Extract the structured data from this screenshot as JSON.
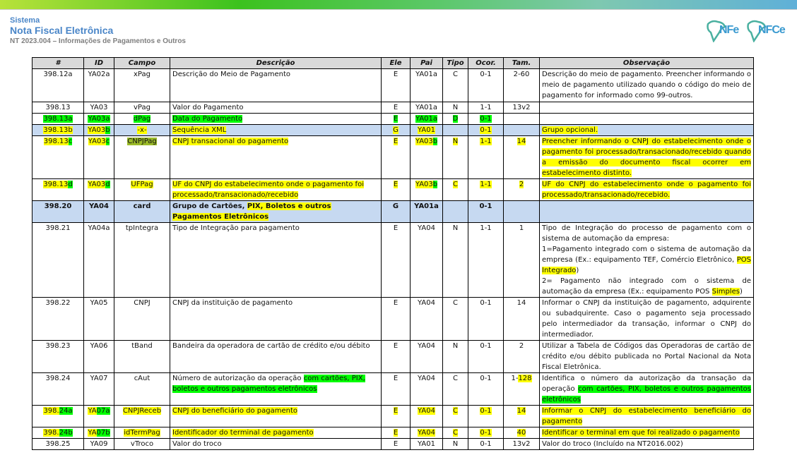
{
  "header": {
    "system_label": "Sistema",
    "title": "Nota Fiscal Eletrônica",
    "subtitle": "NT 2023.004 – Informações de Pagamentos e Outros",
    "logos": [
      "NFe",
      "NFCe"
    ]
  },
  "colors": {
    "yellow_highlight": "#ffff00",
    "green_highlight": "#00ff00",
    "group_row": "#c6d9f1",
    "header_row": "#d9d9d9",
    "title": "#4a86c8"
  },
  "table": {
    "columns": [
      "#",
      "ID",
      "Campo",
      "Descrição",
      "Ele",
      "Pai",
      "Tipo",
      "Ocor.",
      "Tam.",
      "Observação"
    ],
    "rows": [
      {
        "cells": [
          "398.12a",
          "YA02a",
          "xPag",
          "Descrição do Meio de Pagamento",
          "E",
          "YA01a",
          "C",
          "0-1",
          "2-60",
          "Descrição do meio de pagamento. Preencher informando o meio de pagamento utilizado quando o código do meio de pagamento for informado como 99-outros."
        ],
        "h": 46
      },
      {
        "cells": [
          "398.13",
          "YA03",
          "vPag",
          "Valor do Pagamento",
          "E",
          "YA01a",
          "N",
          "1-1",
          "13v2",
          ""
        ],
        "h": 13
      },
      {
        "cells": [
          [
            [
              "398.13a",
              "g"
            ]
          ],
          [
            [
              "YA03a",
              "g"
            ]
          ],
          [
            [
              "dPag",
              "g"
            ]
          ],
          [
            [
              "Data do Pagamento",
              "g"
            ]
          ],
          [
            [
              "E",
              "g"
            ]
          ],
          [
            [
              "YA01a",
              "g"
            ]
          ],
          [
            [
              "D",
              "g"
            ]
          ],
          [
            [
              "0-1",
              "g"
            ]
          ],
          "",
          ""
        ],
        "h": 15
      },
      {
        "style": "blue",
        "cells": [
          [
            [
              "398.13b",
              "y"
            ]
          ],
          [
            [
              "YA03",
              "y"
            ],
            [
              "b",
              "g"
            ]
          ],
          [
            [
              "-x-",
              "y"
            ]
          ],
          [
            [
              "Sequência XML",
              "y"
            ]
          ],
          [
            [
              "G",
              "y"
            ]
          ],
          [
            [
              "YA01",
              "y"
            ]
          ],
          "",
          [
            [
              "0-1",
              "y"
            ]
          ],
          "",
          [
            [
              "Grupo opcional.",
              "y"
            ]
          ]
        ],
        "h": 15
      },
      {
        "cells": [
          [
            [
              "398.13",
              "y"
            ],
            [
              "c",
              "g"
            ]
          ],
          [
            [
              "YA03",
              "y"
            ],
            [
              "c",
              "g"
            ]
          ],
          [
            [
              "CNPJPag",
              "o"
            ]
          ],
          [
            [
              "CNPJ transacional do pagamento",
              "y"
            ]
          ],
          [
            [
              "E",
              "y"
            ]
          ],
          [
            [
              "YA03",
              "y"
            ],
            [
              "b",
              "g"
            ]
          ],
          [
            [
              "N",
              "y"
            ]
          ],
          [
            [
              "1-1",
              "y"
            ]
          ],
          [
            [
              "14",
              "y"
            ]
          ],
          [
            [
              "Preencher informando o CNPJ do estabelecimento onde o pagamento foi processado/transacionado/recebido quando a emissão do documento fiscal ocorrer em estabelecimento distinto.",
              "y"
            ]
          ]
        ],
        "h": 60
      },
      {
        "cells": [
          [
            [
              "398.13",
              "y"
            ],
            [
              "d",
              "g"
            ]
          ],
          [
            [
              "YA03",
              "y"
            ],
            [
              "d",
              "g"
            ]
          ],
          [
            [
              "UFPag",
              "y"
            ]
          ],
          [
            [
              "UF do CNPJ do estabelecimento onde o pagamento foi processado/transacionado/recebido",
              "y"
            ]
          ],
          [
            [
              "E",
              "y"
            ]
          ],
          [
            [
              "YA03",
              "y"
            ],
            [
              "b",
              "g"
            ]
          ],
          [
            [
              "C",
              "y"
            ]
          ],
          [
            [
              "1-1",
              "y"
            ]
          ],
          [
            [
              "2",
              "y"
            ]
          ],
          [
            [
              "UF do CNPJ do estabelecimento onde o pagamento foi processado/transacionado/recebido.",
              "y"
            ]
          ]
        ],
        "h": 30
      },
      {
        "style": "blue bold",
        "cells": [
          "398.20",
          "YA04",
          "card",
          [
            [
              "Grupo de Cartões, ",
              ""
            ],
            [
              "PIX, Boletos e outros Pagamentos Eletrônicos",
              "y"
            ]
          ],
          "G",
          "YA01a",
          "",
          "0-1",
          "",
          ""
        ],
        "h": 30
      },
      {
        "cells": [
          "398.21",
          "YA04a",
          "tpIntegra",
          "Tipo de Integração para pagamento",
          "E",
          "YA04",
          "N",
          "1-1",
          "1",
          [
            [
              "Tipo de Integração do processo de pagamento com o sistema de automação da empresa:\n1=Pagamento integrado com o sistema de automação da empresa (Ex.: equipamento TEF, Comércio Eletrônico, ",
              ""
            ],
            [
              "POS Integrado",
              "y"
            ],
            [
              ")\n2= Pagamento não integrado com o sistema de automação da empresa (Ex.: equipamento POS ",
              ""
            ],
            [
              "Simples",
              "y"
            ],
            [
              ")",
              ""
            ]
          ]
        ],
        "h": 100
      },
      {
        "cells": [
          "398.22",
          "YA05",
          "CNPJ",
          "CNPJ da instituição de pagamento",
          "E",
          "YA04",
          "C",
          "0-1",
          "14",
          "Informar o CNPJ da instituição de pagamento, adquirente ou subadquirente. Caso o pagamento seja processado pelo intermediador da transação, informar o CNPJ do intermediador."
        ],
        "h": 59
      },
      {
        "cells": [
          "398.23",
          "YA06",
          "tBand",
          "Bandeira da operadora de cartão de crédito e/ou débito",
          "E",
          "YA04",
          "N",
          "0-1",
          "2",
          "Utilizar a Tabela de Códigos das Operadoras de cartão de crédito e/ou débito publicada no Portal Nacional da Nota Fiscal Eletrônica."
        ],
        "h": 44
      },
      {
        "cells": [
          "398.24",
          "YA07",
          "cAut",
          [
            [
              "Número de autorização da operação ",
              ""
            ],
            [
              "com cartões, PIX, boletos e outros pagamentos eletrônicos",
              "g"
            ]
          ],
          "E",
          "YA04",
          "C",
          "0-1",
          [
            [
              "1-",
              ""
            ],
            [
              "128",
              "y"
            ]
          ],
          [
            [
              "Identifica o número da autorização da transação da operação ",
              ""
            ],
            [
              "com cartões, PIX, boletos e outros pagamentos eletrônicos",
              "g"
            ]
          ]
        ],
        "h": 43
      },
      {
        "cells": [
          [
            [
              "398.",
              "y"
            ],
            [
              "24a",
              "g"
            ]
          ],
          [
            [
              "YA",
              "y"
            ],
            [
              "07a",
              "g"
            ]
          ],
          [
            [
              "CNPJReceb",
              "y"
            ]
          ],
          [
            [
              " CNPJ do beneficiário do pagamento",
              "y"
            ]
          ],
          [
            [
              "E",
              "y"
            ]
          ],
          [
            [
              "YA04",
              "y"
            ],
            [
              "",
              ""
            ]
          ],
          [
            [
              "C",
              "y"
            ]
          ],
          [
            [
              "0-1",
              "y"
            ]
          ],
          [
            [
              "14",
              "y"
            ]
          ],
          [
            [
              " Informar o CNPJ do estabelecimento beneficiário do pagamento",
              "y"
            ]
          ]
        ],
        "h": 29
      },
      {
        "cells": [
          [
            [
              "398.",
              "y"
            ],
            [
              "24b",
              "g"
            ]
          ],
          [
            [
              "YA",
              "y"
            ],
            [
              "07b",
              "g"
            ]
          ],
          [
            [
              "idTermPag",
              "y"
            ]
          ],
          [
            [
              " Identificador do terminal de pagamento",
              "y"
            ]
          ],
          [
            [
              "E",
              "y"
            ]
          ],
          [
            [
              "YA04",
              "y"
            ]
          ],
          [
            [
              "C",
              "y"
            ]
          ],
          [
            [
              "0-1",
              "y"
            ]
          ],
          [
            [
              "40",
              "y"
            ]
          ],
          [
            [
              " Identificar o terminal em que foi realizado o pagamento",
              "y"
            ]
          ]
        ],
        "h": 15
      },
      {
        "cells": [
          "398.25",
          "YA09",
          "vTroco",
          "Valor do troco",
          "E",
          "YA01",
          "N",
          "0-1",
          "13v2",
          "Valor do troco (Incluído na NT2016.002)"
        ],
        "h": 13
      }
    ]
  }
}
